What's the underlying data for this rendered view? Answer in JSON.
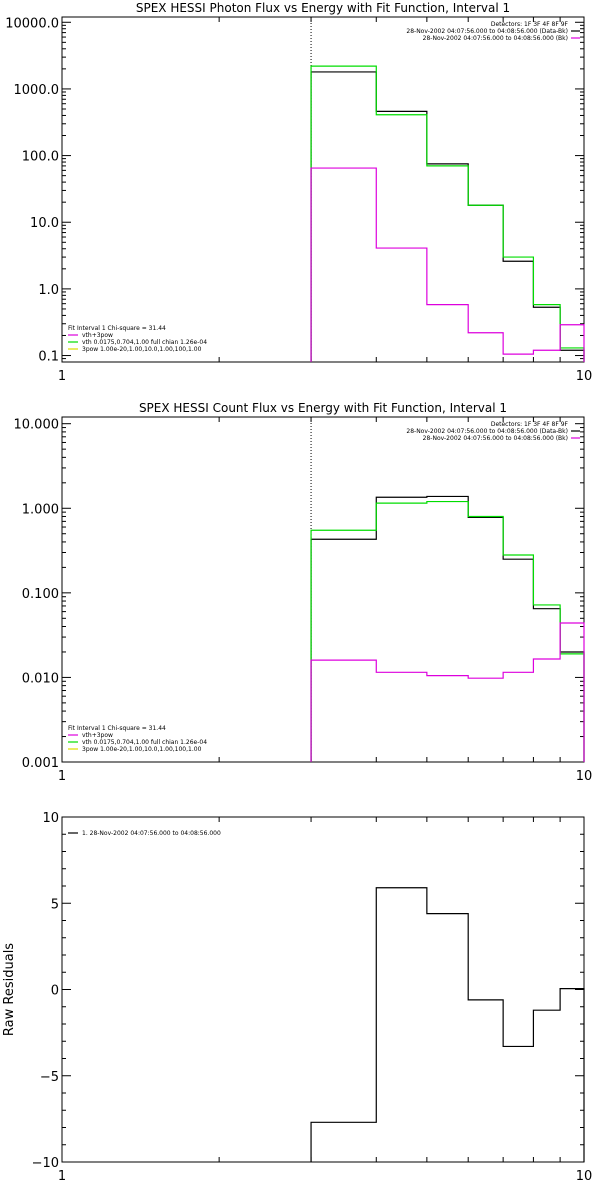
{
  "chart_data": [
    {
      "type": "line",
      "title": "SPEX HESSI Photon Flux vs Energy with Fit Function, Interval 1",
      "xscale": "log",
      "yscale": "log",
      "xlim": [
        1,
        10
      ],
      "ylim": [
        0.08,
        12000
      ],
      "x_ticks": [
        {
          "v": 1,
          "label": "1"
        },
        {
          "v": 10,
          "label": "10"
        }
      ],
      "y_ticks": [
        {
          "v": 10000,
          "label": "10000.0"
        },
        {
          "v": 1000,
          "label": "1000.0"
        },
        {
          "v": 100,
          "label": "100.0"
        },
        {
          "v": 10,
          "label": "10.0"
        },
        {
          "v": 1,
          "label": "1.0"
        },
        {
          "v": 0.1,
          "label": "0.1"
        }
      ],
      "vline": 3,
      "edges": [
        3,
        4,
        5,
        6,
        7,
        8,
        9,
        10
      ],
      "series": [
        {
          "color": "#000000",
          "values": [
            1800,
            460,
            75,
            18,
            2.6,
            0.53,
            0.12
          ]
        },
        {
          "color": "#00dd00",
          "values": [
            2200,
            410,
            70,
            18,
            3.0,
            0.58,
            0.13
          ]
        },
        {
          "color": "#dd00dd",
          "values": [
            65,
            4.1,
            0.58,
            0.22,
            0.105,
            0.12,
            0.29
          ]
        }
      ],
      "legend_right": [
        {
          "text": "Detectors: 1F 3F 4F 8F 9F",
          "color": ""
        },
        {
          "text": "28-Nov-2002 04:07:56.000 to 04:08:56.000 (Data-Bk)",
          "color": "#000000"
        },
        {
          "text": "28-Nov-2002 04:07:56.000 to 04:08:56.000 (Bk)",
          "color": "#dd00dd"
        }
      ],
      "legend_left": [
        {
          "text": "Fit Interval 1    Chi-square = 31.44",
          "color": ""
        },
        {
          "text": "vth+3pow",
          "color": "#dd00dd"
        },
        {
          "text": "vth 0.0175,0.704,1.00  full chian 1.26e-04",
          "color": "#00dd00"
        },
        {
          "text": "3pow 1.00e-20,1.00,10.0,1.00,100,1.00",
          "color": "#dddd00"
        }
      ]
    },
    {
      "type": "line",
      "title": "SPEX HESSI Count Flux vs Energy with Fit Function, Interval 1",
      "xscale": "log",
      "yscale": "log",
      "xlim": [
        1,
        10
      ],
      "ylim": [
        0.001,
        12
      ],
      "x_ticks": [
        {
          "v": 1,
          "label": "1"
        },
        {
          "v": 10,
          "label": "10"
        }
      ],
      "y_ticks": [
        {
          "v": 10,
          "label": "10.000"
        },
        {
          "v": 1,
          "label": "1.000"
        },
        {
          "v": 0.1,
          "label": "0.100"
        },
        {
          "v": 0.01,
          "label": "0.010"
        },
        {
          "v": 0.001,
          "label": "0.001"
        }
      ],
      "vline": 3,
      "edges": [
        3,
        4,
        5,
        6,
        7,
        8,
        9,
        10
      ],
      "series": [
        {
          "color": "#000000",
          "values": [
            0.43,
            1.35,
            1.38,
            0.78,
            0.25,
            0.065,
            0.02
          ]
        },
        {
          "color": "#00dd00",
          "values": [
            0.55,
            1.15,
            1.2,
            0.8,
            0.28,
            0.072,
            0.019
          ]
        },
        {
          "color": "#dd00dd",
          "values": [
            0.016,
            0.0115,
            0.0105,
            0.0098,
            0.0115,
            0.0165,
            0.044
          ]
        }
      ],
      "legend_right": [
        {
          "text": "Detectors: 1F 3F 4F 8F 9F",
          "color": ""
        },
        {
          "text": "28-Nov-2002 04:07:56.000 to 04:08:56.000 (Data-Bk)",
          "color": "#000000"
        },
        {
          "text": "28-Nov-2002 04:07:56.000 to 04:08:56.000 (Bk)",
          "color": "#dd00dd"
        }
      ],
      "legend_left": [
        {
          "text": "Fit Interval 1    Chi-square = 31.44",
          "color": ""
        },
        {
          "text": "vth+3pow",
          "color": "#dd00dd"
        },
        {
          "text": "vth 0.0175,0.704,1.00  full chian 1.26e-04",
          "color": "#00dd00"
        },
        {
          "text": "3pow 1.00e-20,1.00,10.0,1.00,100,1.00",
          "color": "#dddd00"
        }
      ]
    },
    {
      "type": "line",
      "title": "",
      "ylabel": "Raw Residuals",
      "xscale": "log",
      "yscale": "linear",
      "xlim": [
        1,
        10
      ],
      "ylim": [
        -10,
        10
      ],
      "x_ticks": [
        {
          "v": 1,
          "label": "1"
        },
        {
          "v": 10,
          "label": "10"
        }
      ],
      "y_ticks": [
        {
          "v": 10,
          "label": "10"
        },
        {
          "v": 5,
          "label": "5"
        },
        {
          "v": 0,
          "label": "0"
        },
        {
          "v": -5,
          "label": "−5"
        },
        {
          "v": -10,
          "label": "−10"
        }
      ],
      "edges": [
        3,
        4,
        5,
        6,
        7,
        8,
        9,
        10
      ],
      "series": [
        {
          "color": "#000000",
          "values": [
            -7.7,
            5.9,
            4.4,
            -0.6,
            -3.3,
            -1.2,
            0.05
          ]
        }
      ],
      "legend_left": [
        {
          "text": "1. 28-Nov-2002 04:07:56.000 to 04:08:56.000",
          "color": "#000000"
        }
      ]
    }
  ]
}
